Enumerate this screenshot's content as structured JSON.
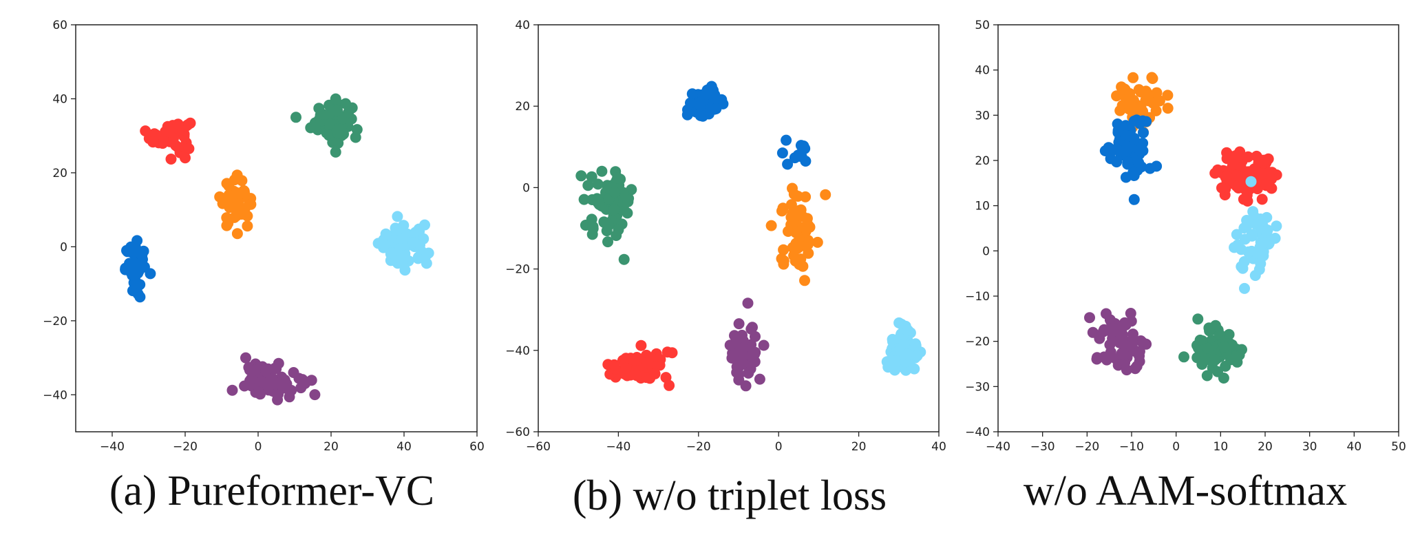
{
  "colors": {
    "orange": "#FF8A18",
    "red": "#FF3A35",
    "green": "#3B9470",
    "blue": "#0A72D2",
    "skyblue": "#7FDAFB",
    "purple": "#854488"
  },
  "chart_data": [
    {
      "type": "scatter",
      "caption": "(a) Pureformer-VC",
      "title": "",
      "xlabel": "",
      "ylabel": "",
      "xlim": [
        -50,
        60
      ],
      "ylim": [
        -50,
        60
      ],
      "xticks": [
        -40,
        -20,
        0,
        20,
        40,
        60
      ],
      "yticks": [
        -40,
        -20,
        0,
        20,
        40,
        60
      ],
      "grid": false,
      "clusters": [
        {
          "color": "red",
          "center": [
            -24,
            30
          ],
          "spread": [
            5,
            4
          ],
          "n": 55
        },
        {
          "color": "green",
          "center": [
            20,
            34
          ],
          "spread": [
            5,
            5
          ],
          "n": 70
        },
        {
          "color": "orange",
          "center": [
            -6,
            12
          ],
          "spread": [
            4,
            6
          ],
          "n": 45
        },
        {
          "color": "blue",
          "center": [
            -33,
            -6
          ],
          "spread": [
            3,
            6
          ],
          "n": 45
        },
        {
          "color": "skyblue",
          "center": [
            40,
            0
          ],
          "spread": [
            6,
            5
          ],
          "n": 70
        },
        {
          "color": "purple",
          "center": [
            4,
            -36
          ],
          "spread": [
            7,
            4
          ],
          "n": 80
        }
      ]
    },
    {
      "type": "scatter",
      "caption": "(b) w/o triplet loss",
      "title": "",
      "xlabel": "",
      "ylabel": "",
      "xlim": [
        -60,
        40
      ],
      "ylim": [
        -60,
        40
      ],
      "xticks": [
        -60,
        -40,
        -20,
        0,
        20,
        40
      ],
      "yticks": [
        -60,
        -40,
        -20,
        0,
        20,
        40
      ],
      "grid": false,
      "clusters": [
        {
          "color": "blue",
          "center": [
            -18,
            21
          ],
          "spread": [
            4,
            3
          ],
          "n": 45
        },
        {
          "color": "blue",
          "center": [
            5,
            8
          ],
          "spread": [
            3,
            3
          ],
          "n": 12
        },
        {
          "color": "green",
          "center": [
            -42,
            -4
          ],
          "spread": [
            5,
            7
          ],
          "n": 85
        },
        {
          "color": "orange",
          "center": [
            5,
            -10
          ],
          "spread": [
            4,
            9
          ],
          "n": 60
        },
        {
          "color": "skyblue",
          "center": [
            30,
            -40
          ],
          "spread": [
            4,
            6
          ],
          "n": 60
        },
        {
          "color": "red",
          "center": [
            -35,
            -44
          ],
          "spread": [
            7,
            4
          ],
          "n": 55
        },
        {
          "color": "purple",
          "center": [
            -9,
            -41
          ],
          "spread": [
            4,
            7
          ],
          "n": 50
        }
      ]
    },
    {
      "type": "scatter",
      "caption": "w/o AAM-softmax",
      "title": "",
      "xlabel": "",
      "ylabel": "",
      "xlim": [
        -40,
        50
      ],
      "ylim": [
        -40,
        50
      ],
      "xticks": [
        -40,
        -30,
        -20,
        -10,
        0,
        10,
        20,
        30,
        40,
        50
      ],
      "yticks": [
        -40,
        -30,
        -20,
        -10,
        0,
        10,
        20,
        30,
        40,
        50
      ],
      "grid": false,
      "clusters": [
        {
          "color": "orange",
          "center": [
            -8,
            33
          ],
          "spread": [
            5,
            5
          ],
          "n": 55
        },
        {
          "color": "blue",
          "center": [
            -10,
            22
          ],
          "spread": [
            4,
            6
          ],
          "n": 70
        },
        {
          "color": "red",
          "center": [
            16,
            17
          ],
          "spread": [
            7,
            5
          ],
          "n": 75
        },
        {
          "color": "skyblue",
          "center": [
            18,
            2
          ],
          "spread": [
            4,
            7
          ],
          "n": 45
        },
        {
          "color": "purple",
          "center": [
            -12,
            -20
          ],
          "spread": [
            5,
            7
          ],
          "n": 60
        },
        {
          "color": "green",
          "center": [
            9,
            -22
          ],
          "spread": [
            6,
            5
          ],
          "n": 55
        }
      ]
    }
  ]
}
